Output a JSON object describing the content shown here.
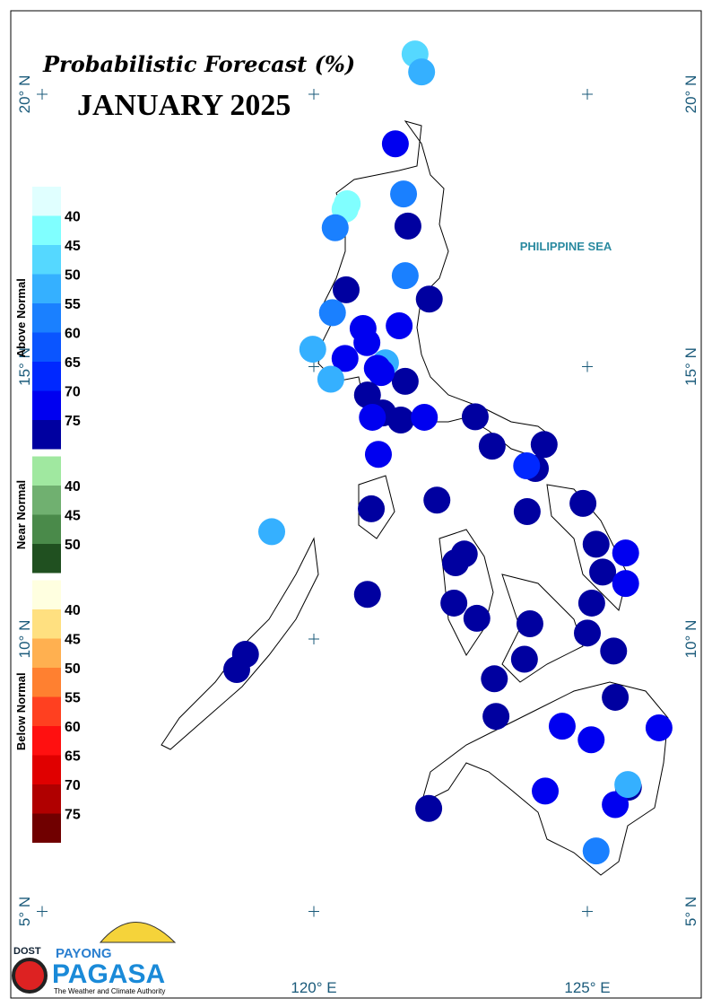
{
  "map": {
    "title": "Probabilistic Forecast (%)",
    "subtitle": "JANUARY 2025",
    "sea_label": "PHILIPPINE SEA",
    "xticks": [
      {
        "value": 120,
        "label": "120° E"
      },
      {
        "value": 125,
        "label": "125° E"
      }
    ],
    "yticks": [
      {
        "value": 20,
        "label": "20° N"
      },
      {
        "value": 15,
        "label": "15° N"
      },
      {
        "value": 10,
        "label": "10° N"
      },
      {
        "value": 5,
        "label": "5° N"
      }
    ],
    "legend": [
      {
        "title": "Above Normal",
        "ticks": [
          40,
          45,
          50,
          55,
          60,
          65,
          70,
          75
        ],
        "colors": [
          "#e0ffff",
          "#80ffff",
          "#55d8ff",
          "#35b0ff",
          "#1a80ff",
          "#0a55ff",
          "#0028ff",
          "#0000f0",
          "#0000a0"
        ]
      },
      {
        "title": "Near Normal",
        "ticks": [
          40,
          45,
          50
        ],
        "colors": [
          "#a0e8a0",
          "#70b070",
          "#4a8a4a",
          "#205020"
        ]
      },
      {
        "title": "Below Normal",
        "ticks": [
          40,
          45,
          50,
          55,
          60,
          65,
          70,
          75
        ],
        "colors": [
          "#ffffe0",
          "#ffe080",
          "#ffb050",
          "#ff8030",
          "#ff4020",
          "#ff1010",
          "#e00000",
          "#b00000",
          "#700000"
        ]
      }
    ],
    "stations": {
      "category": "Above Normal",
      "lon": [
        121.85,
        121.97,
        121.49,
        121.64,
        120.61,
        120.57,
        121.72,
        120.39,
        121.67,
        120.59,
        122.11,
        120.34,
        121.56,
        120.9,
        120.97,
        119.98,
        120.57,
        121.31,
        121.16,
        120.31,
        121.67,
        121.23,
        120.98,
        121.26,
        121.07,
        121.59,
        122.02,
        122.95,
        123.26,
        124.21,
        121.18,
        124.05,
        123.89,
        122.25,
        124.92,
        121.05,
        123.9,
        119.23,
        125.16,
        125.7,
        122.75,
        122.59,
        125.28,
        125.7,
        120.98,
        125.08,
        122.56,
        122.98,
        123.95,
        125.0,
        118.75,
        125.48,
        118.59,
        123.85,
        123.3,
        125.51,
        123.33,
        124.54,
        126.31,
        125.07,
        125.75,
        124.23,
        125.51,
        125.74,
        122.1,
        125.16
      ],
      "lat": [
        20.74,
        20.41,
        19.09,
        18.17,
        17.99,
        17.89,
        17.58,
        17.55,
        16.67,
        16.41,
        16.24,
        15.99,
        15.75,
        15.7,
        15.44,
        15.32,
        15.15,
        15.07,
        14.97,
        14.77,
        14.73,
        14.89,
        14.48,
        14.15,
        14.07,
        14.02,
        14.07,
        14.08,
        13.54,
        13.57,
        13.39,
        13.13,
        13.18,
        12.55,
        12.49,
        12.39,
        12.34,
        11.97,
        11.74,
        11.58,
        11.56,
        11.4,
        11.23,
        11.02,
        10.82,
        10.66,
        10.66,
        10.38,
        10.28,
        10.11,
        9.72,
        9.78,
        9.44,
        9.63,
        9.27,
        8.93,
        8.58,
        8.4,
        8.37,
        8.15,
        7.28,
        7.21,
        6.96,
        7.33,
        6.89,
        6.11
      ],
      "values": [
        47,
        52,
        72,
        57,
        42,
        42,
        77,
        57,
        57,
        77,
        77,
        57,
        72,
        72,
        72,
        52,
        72,
        52,
        72,
        52,
        77,
        72,
        77,
        77,
        72,
        77,
        72,
        77,
        77,
        77,
        72,
        77,
        67,
        77,
        77,
        77,
        77,
        52,
        77,
        72,
        77,
        77,
        77,
        72,
        77,
        77,
        77,
        77,
        77,
        77,
        77,
        77,
        77,
        77,
        77,
        77,
        77,
        72,
        72,
        72,
        77,
        72,
        72,
        52,
        77,
        57
      ]
    },
    "logo": {
      "agency": "DOST",
      "brand_top": "PAYONG",
      "brand": "PAGASA",
      "tagline": "The Weather and Climate Authority"
    }
  }
}
